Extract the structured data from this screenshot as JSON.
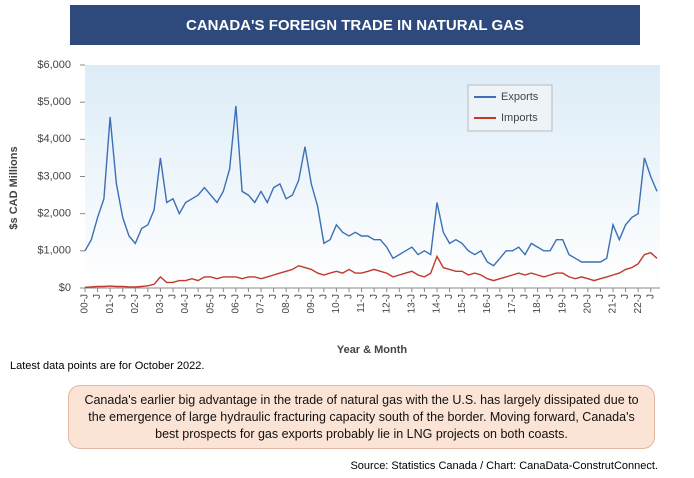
{
  "chart_data": {
    "type": "line",
    "title": "CANADA'S FOREIGN TRADE IN NATURAL GAS",
    "y_label": "$s CAD Millions",
    "x_label": "Year & Month",
    "note": "Latest data points are for October 2022.",
    "commentary": "Canada's earlier big advantage in the trade of natural gas with the U.S. has largely dissipated due to the emergence of large hydraulic fracturing capacity south of the border. Moving forward, Canada's best prospects for gas exports probably lie in LNG projects on both coasts.",
    "source": "Source: Statistics Canada / Chart: CanaData-ConstrutConnect.",
    "legend": "upper-right",
    "ylim": [
      0,
      6000
    ],
    "yticks": [
      {
        "value": 0,
        "label": "$0"
      },
      {
        "value": 1000,
        "label": "$1,000"
      },
      {
        "value": 2000,
        "label": "$2,000"
      },
      {
        "value": 3000,
        "label": "$3,000"
      },
      {
        "value": 4000,
        "label": "$4,000"
      },
      {
        "value": 5000,
        "label": "$5,000"
      },
      {
        "value": 6000,
        "label": "$6,000"
      }
    ],
    "categories": [
      "00-J",
      null,
      "J",
      null,
      "01-J",
      null,
      "J",
      null,
      "02-J",
      null,
      "J",
      null,
      "03-J",
      null,
      "J",
      null,
      "04-J",
      null,
      "J",
      null,
      "05-J",
      null,
      "J",
      null,
      "06-J",
      null,
      "J",
      null,
      "07-J",
      null,
      "J",
      null,
      "08-J",
      null,
      "J",
      null,
      "09-J",
      null,
      "J",
      null,
      "10-J",
      null,
      "J",
      null,
      "11-J",
      null,
      "J",
      null,
      "12-J",
      null,
      "J",
      null,
      "13-J",
      null,
      "J",
      null,
      "14-J",
      null,
      "J",
      null,
      "15-J",
      null,
      "J",
      null,
      "16-J",
      null,
      "J",
      null,
      "17-J",
      null,
      "J",
      null,
      "18-J",
      null,
      "J",
      null,
      "19-J",
      null,
      "J",
      null,
      "20-J",
      null,
      "J",
      null,
      "21-J",
      null,
      "J",
      null,
      "22-J",
      null,
      "J",
      null
    ],
    "series": [
      {
        "name": "Exports",
        "color": "#3d6fb4",
        "values": [
          1000,
          1300,
          1900,
          2400,
          4600,
          2800,
          1900,
          1400,
          1200,
          1600,
          1700,
          2100,
          3500,
          2300,
          2400,
          2000,
          2300,
          2400,
          2500,
          2700,
          2500,
          2300,
          2600,
          3200,
          4900,
          2600,
          2500,
          2300,
          2600,
          2300,
          2700,
          2800,
          2400,
          2500,
          2900,
          3800,
          2800,
          2200,
          1200,
          1300,
          1700,
          1500,
          1400,
          1500,
          1400,
          1400,
          1300,
          1300,
          1100,
          800,
          900,
          1000,
          1100,
          900,
          1000,
          900,
          2300,
          1500,
          1200,
          1300,
          1200,
          1000,
          900,
          1000,
          700,
          600,
          800,
          1000,
          1000,
          1100,
          900,
          1200,
          1100,
          1000,
          1000,
          1300,
          1300,
          900,
          800,
          700,
          700,
          700,
          700,
          800,
          1700,
          1300,
          1700,
          1900,
          2000,
          3500,
          3000,
          2600
        ]
      },
      {
        "name": "Imports",
        "color": "#c0392b",
        "values": [
          20,
          30,
          40,
          40,
          50,
          40,
          40,
          30,
          30,
          40,
          60,
          100,
          300,
          150,
          150,
          200,
          200,
          250,
          200,
          300,
          300,
          250,
          300,
          300,
          300,
          250,
          300,
          300,
          250,
          300,
          350,
          400,
          450,
          500,
          600,
          550,
          500,
          400,
          350,
          400,
          450,
          400,
          500,
          400,
          400,
          450,
          500,
          450,
          400,
          300,
          350,
          400,
          450,
          350,
          300,
          400,
          850,
          550,
          500,
          450,
          450,
          350,
          400,
          350,
          250,
          200,
          250,
          300,
          350,
          400,
          350,
          400,
          350,
          300,
          350,
          400,
          400,
          300,
          250,
          300,
          250,
          200,
          250,
          300,
          350,
          400,
          500,
          550,
          650,
          900,
          950,
          800
        ]
      }
    ]
  }
}
